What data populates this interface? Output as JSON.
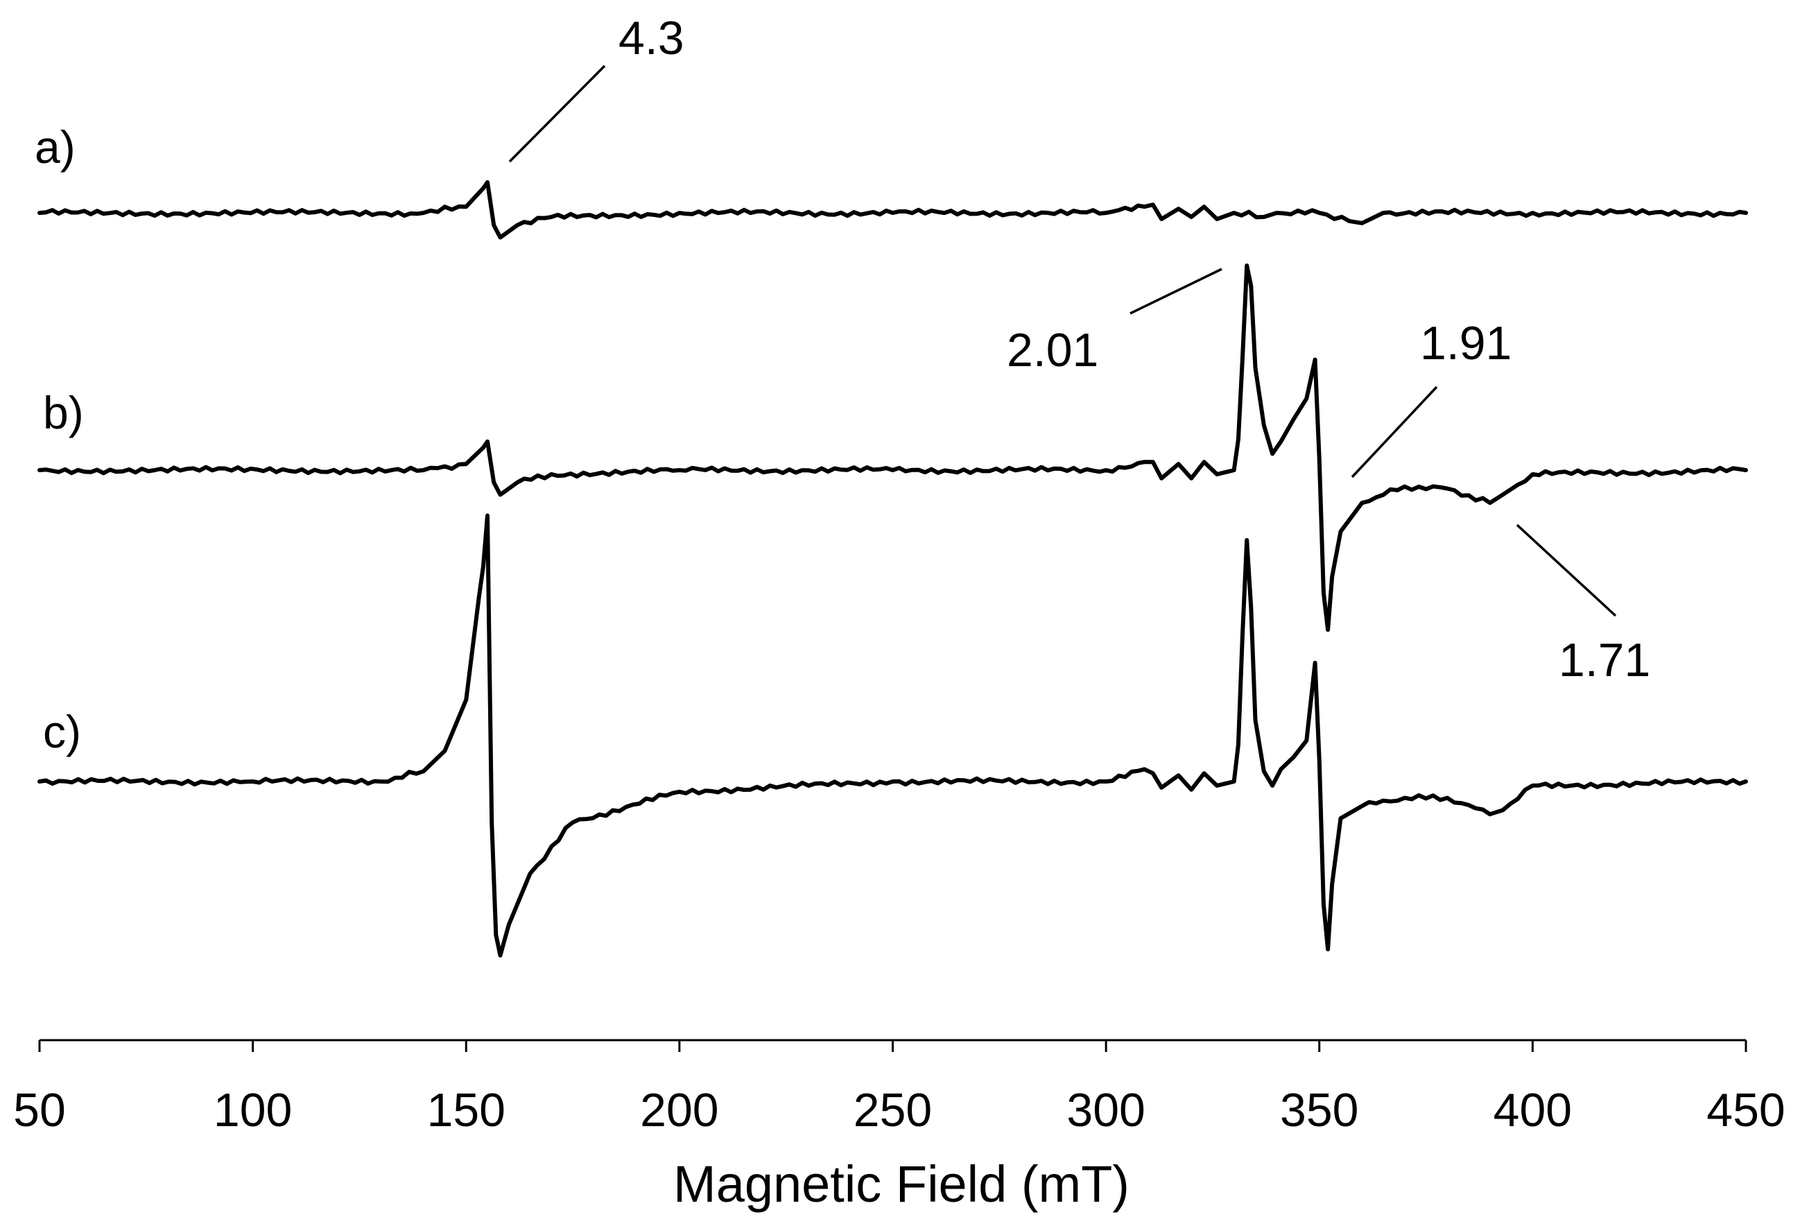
{
  "chart_data": {
    "type": "line",
    "title": "",
    "xlabel": "Magnetic Field (mT)",
    "ylabel": "",
    "xlim": [
      50,
      450
    ],
    "xticks": [
      "50",
      "100",
      "150",
      "200",
      "250",
      "300",
      "350",
      "400",
      "450"
    ],
    "grid": false,
    "series": [
      {
        "name": "a)",
        "points": [
          [
            50,
            0
          ],
          [
            140,
            0
          ],
          [
            150,
            3
          ],
          [
            154,
            12
          ],
          [
            155,
            15
          ],
          [
            156.5,
            -6
          ],
          [
            158,
            -12
          ],
          [
            162,
            -6
          ],
          [
            170,
            -2
          ],
          [
            200,
            0
          ],
          [
            250,
            0
          ],
          [
            300,
            0
          ],
          [
            309,
            3
          ],
          [
            311,
            4
          ],
          [
            313,
            -3
          ],
          [
            317,
            2
          ],
          [
            320,
            -2
          ],
          [
            323,
            3
          ],
          [
            326,
            -3
          ],
          [
            330,
            0
          ],
          [
            337,
            -2
          ],
          [
            340,
            0
          ],
          [
            350,
            0
          ],
          [
            357,
            -4
          ],
          [
            360,
            -5
          ],
          [
            365,
            0
          ],
          [
            400,
            0
          ],
          [
            450,
            0
          ]
        ]
      },
      {
        "name": "b)",
        "points": [
          [
            50,
            0
          ],
          [
            140,
            0
          ],
          [
            150,
            3
          ],
          [
            154,
            11
          ],
          [
            155,
            14
          ],
          [
            156.5,
            -6
          ],
          [
            158,
            -12
          ],
          [
            162,
            -6
          ],
          [
            170,
            -2
          ],
          [
            200,
            0
          ],
          [
            250,
            0
          ],
          [
            300,
            0
          ],
          [
            309,
            4
          ],
          [
            311,
            4
          ],
          [
            313,
            -4
          ],
          [
            317,
            3
          ],
          [
            320,
            -4
          ],
          [
            323,
            4
          ],
          [
            326,
            -2
          ],
          [
            330,
            0
          ],
          [
            331,
            15
          ],
          [
            332,
            55
          ],
          [
            333,
            100
          ],
          [
            334,
            90
          ],
          [
            335,
            50
          ],
          [
            337,
            22
          ],
          [
            339,
            8
          ],
          [
            341,
            14
          ],
          [
            344,
            25
          ],
          [
            347,
            35
          ],
          [
            349,
            54
          ],
          [
            350,
            5
          ],
          [
            351,
            -60
          ],
          [
            352,
            -78
          ],
          [
            353,
            -52
          ],
          [
            355,
            -30
          ],
          [
            360,
            -16
          ],
          [
            370,
            -8
          ],
          [
            380,
            -9
          ],
          [
            390,
            -16
          ],
          [
            393,
            -12
          ],
          [
            400,
            -2
          ],
          [
            450,
            0
          ]
        ]
      },
      {
        "name": "c)",
        "points": [
          [
            50,
            0
          ],
          [
            100,
            0
          ],
          [
            130,
            0
          ],
          [
            140,
            5
          ],
          [
            145,
            15
          ],
          [
            150,
            40
          ],
          [
            153,
            90
          ],
          [
            154,
            105
          ],
          [
            155,
            130
          ],
          [
            156,
            -20
          ],
          [
            157,
            -75
          ],
          [
            158,
            -85
          ],
          [
            160,
            -70
          ],
          [
            165,
            -45
          ],
          [
            175,
            -20
          ],
          [
            200,
            -5
          ],
          [
            250,
            0
          ],
          [
            300,
            0
          ],
          [
            309,
            6
          ],
          [
            311,
            4
          ],
          [
            313,
            -3
          ],
          [
            317,
            3
          ],
          [
            320,
            -4
          ],
          [
            323,
            4
          ],
          [
            326,
            -2
          ],
          [
            330,
            0
          ],
          [
            331,
            18
          ],
          [
            332,
            72
          ],
          [
            333,
            118
          ],
          [
            334,
            85
          ],
          [
            335,
            30
          ],
          [
            337,
            5
          ],
          [
            339,
            -2
          ],
          [
            341,
            6
          ],
          [
            344,
            12
          ],
          [
            347,
            20
          ],
          [
            349,
            58
          ],
          [
            350,
            10
          ],
          [
            351,
            -60
          ],
          [
            352,
            -82
          ],
          [
            353,
            -50
          ],
          [
            355,
            -18
          ],
          [
            360,
            -12
          ],
          [
            370,
            -8
          ],
          [
            380,
            -8
          ],
          [
            390,
            -16
          ],
          [
            393,
            -14
          ],
          [
            400,
            -2
          ],
          [
            450,
            0
          ]
        ]
      }
    ],
    "annotations": [
      {
        "text": "4.3",
        "series": "a)",
        "x": 155
      },
      {
        "text": "2.01",
        "series": "b)",
        "x": 333
      },
      {
        "text": "1.91",
        "series": "b)",
        "x": 351
      },
      {
        "text": "1.71",
        "series": "b)",
        "x": 392
      }
    ],
    "color": "#000000"
  }
}
